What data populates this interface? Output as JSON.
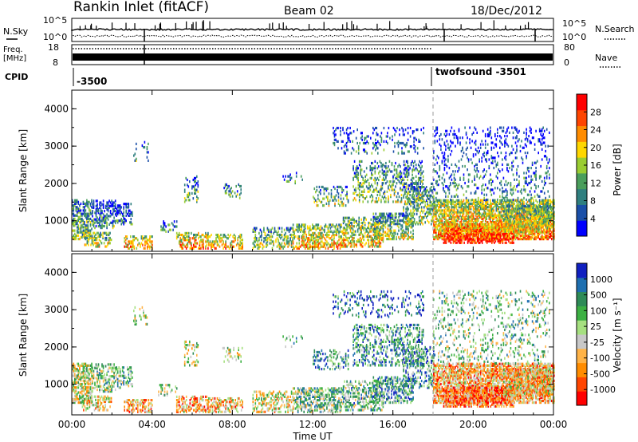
{
  "header": {
    "title": "Rankin Inlet (fitACF)",
    "beam": "Beam 02",
    "date": "18/Dec/2012"
  },
  "summary": {
    "nsky_label": "N.Sky",
    "nsearch_label": "N.Search",
    "freq_label_1": "Freq.",
    "freq_label_2": "[MHz]",
    "nave_label": "Nave",
    "cpid_label": "CPID",
    "left_ticks": [
      "10^5",
      "10^0"
    ],
    "right_ticks": [
      "10^5",
      "10^0"
    ],
    "freq_ticks": [
      "18",
      "8"
    ],
    "nave_ticks": [
      "80",
      "0"
    ],
    "cpid_1": "-3500",
    "cpid_2": "twofsound -3501"
  },
  "colors": {
    "power_scale": [
      "#0000ff",
      "#1a4fa8",
      "#2f7f7f",
      "#4a9e5c",
      "#9acd32",
      "#ffd700",
      "#ff8c00",
      "#ff4500",
      "#ff0000"
    ],
    "velocity_scale": [
      "#ff0000",
      "#ff4500",
      "#ff8c00",
      "#ffb347",
      "#c8c8c8",
      "#a6e080",
      "#3cb043",
      "#2e8b57",
      "#1e6fb0",
      "#1020c0"
    ]
  },
  "chart_data": [
    {
      "type": "heatmap",
      "panel": "power",
      "ylabel": "Slant Range [km]",
      "xlabel": "Time UT",
      "ylim": [
        180,
        4500
      ],
      "xlim": [
        0,
        24
      ],
      "x_ticks": [
        "00:00",
        "04:00",
        "08:00",
        "12:00",
        "16:00",
        "20:00",
        "00:00"
      ],
      "y_ticks": [
        "1000",
        "2000",
        "3000",
        "4000"
      ],
      "colorbar_label": "Power [dB]",
      "colorbar_ticks": [
        "4",
        "8",
        "12",
        "16",
        "20",
        "24",
        "28"
      ],
      "mode_change_hour": 18
    },
    {
      "type": "heatmap",
      "panel": "velocity",
      "ylabel": "Slant Range [km]",
      "xlabel": "Time UT",
      "ylim": [
        180,
        4500
      ],
      "xlim": [
        0,
        24
      ],
      "x_ticks": [
        "00:00",
        "04:00",
        "08:00",
        "12:00",
        "16:00",
        "20:00",
        "00:00"
      ],
      "y_ticks": [
        "1000",
        "2000",
        "3000",
        "4000"
      ],
      "colorbar_label": "Velocity [m s⁻¹]",
      "colorbar_ticks": [
        "1000",
        "500",
        "100",
        "25",
        "-25",
        "-100",
        "-500",
        "-1000"
      ],
      "mode_change_hour": 18
    }
  ]
}
